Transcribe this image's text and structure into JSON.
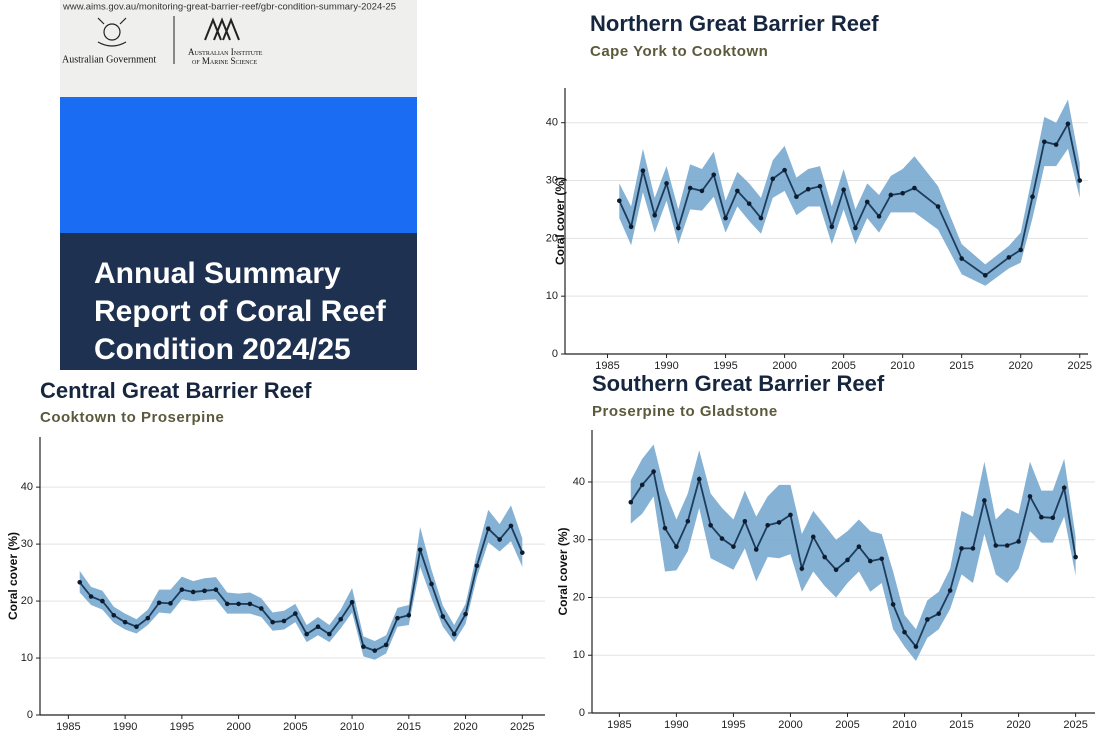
{
  "cover": {
    "url": "www.aims.gov.au/monitoring-great-barrier-reef/gbr-condition-summary-2024-25",
    "government": "Australian Government",
    "institute": [
      "Australian Institute",
      "of Marine Science"
    ],
    "title_lines": [
      "Annual Summary",
      "Report of Coral Reef",
      "Condition 2024/25"
    ]
  },
  "chart_data": [
    {
      "type": "line",
      "title": "Northern Great Barrier Reef",
      "subtitle": "Cape York to Cooktown",
      "y_label": "Coral cover (%)",
      "color": "#1d3c5c",
      "band_color": "#6fa3cc",
      "x": [
        1986,
        1987,
        1988,
        1989,
        1990,
        1991,
        1992,
        1993,
        1994,
        1995,
        1996,
        1997,
        1998,
        1999,
        2000,
        2001,
        2002,
        2003,
        2004,
        2005,
        2006,
        2007,
        2008,
        2009,
        2010,
        2011,
        2013,
        2015,
        2017,
        2019,
        2020,
        2021,
        2022,
        2023,
        2024,
        2025
      ],
      "values": [
        26.5,
        22,
        31.7,
        24,
        29.5,
        21.8,
        28.7,
        28.2,
        31,
        23.5,
        28.2,
        26,
        23.5,
        30.3,
        31.8,
        27.2,
        28.5,
        29,
        22,
        28.4,
        21.8,
        26.3,
        23.8,
        27.5,
        27.8,
        28.7,
        25.5,
        16.5,
        13.6,
        16.7,
        18,
        27.2,
        36.7,
        36.2,
        39.8,
        30
      ],
      "lower": [
        23.5,
        18.8,
        28,
        21,
        26.5,
        19,
        25,
        24.8,
        27.2,
        21,
        25.5,
        23,
        20.8,
        27,
        28.2,
        24,
        25.5,
        25.5,
        19,
        25,
        19,
        23.5,
        21,
        24.5,
        24.5,
        24.5,
        21.5,
        13.8,
        11.8,
        14.8,
        15.8,
        23.5,
        32.5,
        32.5,
        35.5,
        27
      ],
      "upper": [
        29.5,
        25.5,
        35.5,
        27,
        32.5,
        25,
        32.8,
        32,
        35,
        26.5,
        31.5,
        29.5,
        27,
        33.5,
        36,
        30.5,
        32,
        32.5,
        25.5,
        32,
        25,
        29.5,
        27.5,
        30.8,
        32,
        34.2,
        29,
        19,
        15.5,
        18.7,
        21,
        31,
        41,
        40,
        44,
        33
      ],
      "xlim": [
        1981.4,
        2025.7
      ],
      "ylim": [
        0,
        46
      ],
      "xticks": [
        1985,
        1990,
        1995,
        2000,
        2005,
        2010,
        2015,
        2020,
        2025
      ],
      "yticks": [
        0,
        10,
        20,
        30,
        40
      ],
      "grid": true
    },
    {
      "type": "line",
      "title": "Central Great Barrier Reef",
      "subtitle": "Cooktown to Proserpine",
      "y_label": "Coral cover (%)",
      "color": "#1d3c5c",
      "band_color": "#6fa3cc",
      "x": [
        1986,
        1987,
        1988,
        1989,
        1990,
        1991,
        1992,
        1993,
        1994,
        1995,
        1996,
        1997,
        1998,
        1999,
        2000,
        2001,
        2002,
        2003,
        2004,
        2005,
        2006,
        2007,
        2008,
        2009,
        2010,
        2011,
        2012,
        2013,
        2014,
        2015,
        2016,
        2017,
        2018,
        2019,
        2020,
        2021,
        2022,
        2023,
        2024,
        2025
      ],
      "values": [
        23.3,
        20.8,
        20,
        17.5,
        16.3,
        15.5,
        17,
        19.7,
        19.6,
        22,
        21.6,
        21.8,
        22,
        19.5,
        19.5,
        19.5,
        18.7,
        16.3,
        16.5,
        17.8,
        14.2,
        15.5,
        14.2,
        16.8,
        19.8,
        12,
        11.3,
        12.3,
        17,
        17.5,
        29,
        23,
        17.3,
        14.2,
        17.7,
        26.2,
        32.7,
        30.8,
        33.2,
        28.5
      ],
      "lower": [
        21.5,
        19.3,
        18.5,
        16.2,
        15,
        14.3,
        15.8,
        18,
        17.8,
        20.3,
        20,
        20.2,
        20.3,
        17.8,
        17.8,
        17.8,
        17.2,
        14.8,
        15,
        16.3,
        12.8,
        14,
        12.8,
        15.2,
        18,
        10.3,
        9.7,
        10.8,
        15.5,
        15.8,
        26,
        20.5,
        15.5,
        12.8,
        16,
        24.2,
        30.3,
        28.7,
        30.5,
        26
      ],
      "upper": [
        25.3,
        22.5,
        21.8,
        19,
        17.8,
        16.8,
        18.5,
        22,
        22,
        24.3,
        23.5,
        24,
        24.2,
        21.5,
        21.3,
        21.5,
        20.5,
        18,
        18.3,
        19.5,
        15.8,
        17.2,
        15.8,
        18.5,
        22.3,
        13.8,
        13,
        14,
        18.8,
        19.3,
        33,
        25.5,
        19.2,
        15.8,
        19.5,
        28.5,
        36,
        33.5,
        36.8,
        31
      ],
      "xlim": [
        1982.5,
        2027
      ],
      "ylim": [
        0,
        48.8
      ],
      "xticks": [
        1985,
        1990,
        1995,
        2000,
        2005,
        2010,
        2015,
        2020,
        2025
      ],
      "yticks": [
        0,
        10,
        20,
        30,
        40
      ],
      "grid": true
    },
    {
      "type": "line",
      "title": "Southern Great Barrier Reef",
      "subtitle": "Proserpine to Gladstone",
      "y_label": "Coral cover (%)",
      "color": "#1d3c5c",
      "band_color": "#6fa3cc",
      "x": [
        1986,
        1987,
        1988,
        1989,
        1990,
        1991,
        1992,
        1993,
        1994,
        1995,
        1996,
        1997,
        1998,
        1999,
        2000,
        2001,
        2002,
        2003,
        2004,
        2005,
        2006,
        2007,
        2008,
        2009,
        2010,
        2011,
        2012,
        2013,
        2014,
        2015,
        2016,
        2017,
        2018,
        2019,
        2020,
        2021,
        2022,
        2023,
        2024,
        2025
      ],
      "values": [
        36.5,
        39.5,
        41.8,
        32,
        28.8,
        33.2,
        40.5,
        32.5,
        30.2,
        28.8,
        33.2,
        28.3,
        32.5,
        33,
        34.3,
        25,
        30.5,
        27,
        24.8,
        26.5,
        28.8,
        26.3,
        26.7,
        18.8,
        14,
        11.5,
        16.2,
        17.2,
        21.2,
        28.5,
        28.5,
        36.8,
        29,
        29,
        29.7,
        37.5,
        33.9,
        33.8,
        39,
        27
      ],
      "lower": [
        32.8,
        34.5,
        37.5,
        24.5,
        24.7,
        28,
        35.5,
        26.8,
        25.8,
        24.8,
        28.5,
        22.8,
        27,
        26.8,
        27.5,
        21,
        24.5,
        22,
        20,
        22.5,
        24.5,
        21,
        22.5,
        14.5,
        11.5,
        9,
        13,
        14.5,
        18,
        24,
        22.5,
        31,
        24,
        22.5,
        25,
        31.5,
        29.5,
        29.5,
        34,
        23.8
      ],
      "upper": [
        40.3,
        44,
        46.5,
        38.5,
        33.5,
        38,
        45.5,
        38,
        35.5,
        33.5,
        38.5,
        34,
        37.5,
        39.5,
        39.5,
        31,
        35,
        32.5,
        30,
        31.5,
        33.5,
        31.5,
        31,
        24.5,
        17,
        14.5,
        19.5,
        21,
        25,
        35,
        34,
        43.5,
        33.5,
        35.5,
        34.5,
        43.5,
        38.5,
        38.5,
        44,
        30.5
      ],
      "xlim": [
        1982.6,
        2026.7
      ],
      "ylim": [
        0,
        49
      ],
      "xticks": [
        1985,
        1990,
        1995,
        2000,
        2005,
        2010,
        2015,
        2020,
        2025
      ],
      "yticks": [
        0,
        10,
        20,
        30,
        40
      ],
      "grid": true
    }
  ]
}
